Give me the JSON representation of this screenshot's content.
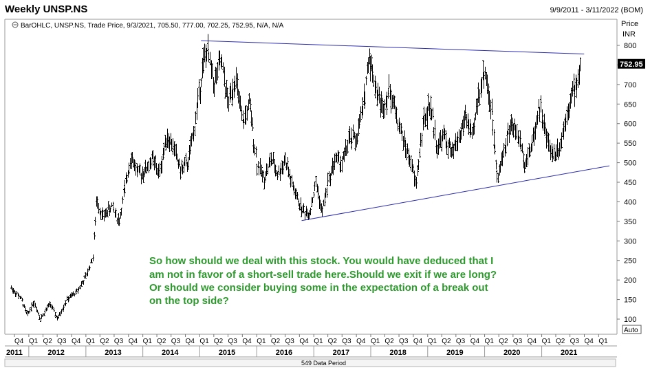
{
  "header": {
    "title": "Weekly UNSP.NS",
    "date_range": "9/9/2011 - 3/11/2022 (BOM)"
  },
  "chart_data": {
    "type": "bar",
    "ohlc_label": "BarOHLC, UNSP.NS, Trade Price, 9/3/2021, 705.50, 777.00, 702.25, 752.95, N/A, N/A",
    "y_axis": {
      "unit_line1": "Price",
      "unit_line2": "INR",
      "ticks": [
        100,
        150,
        200,
        250,
        300,
        350,
        400,
        450,
        500,
        550,
        600,
        650,
        700,
        750,
        800
      ],
      "ylim": [
        80,
        830
      ]
    },
    "last_price_label": "752.95",
    "last_price": 752.95,
    "quarter_labels": [
      "Q4",
      "Q1",
      "Q2",
      "Q3",
      "Q4",
      "Q1",
      "Q2",
      "Q3",
      "Q4",
      "Q1",
      "Q2",
      "Q3",
      "Q4",
      "Q1",
      "Q2",
      "Q3",
      "Q4",
      "Q1",
      "Q2",
      "Q3",
      "Q4",
      "Q1",
      "Q2",
      "Q3",
      "Q4",
      "Q1",
      "Q2",
      "Q3",
      "Q4",
      "Q1",
      "Q2",
      "Q3",
      "Q4",
      "Q1",
      "Q2",
      "Q3",
      "Q4",
      "Q1",
      "Q2",
      "Q3",
      "Q4",
      "Q1"
    ],
    "year_labels": [
      "2011",
      "2012",
      "2013",
      "2014",
      "2015",
      "2016",
      "2017",
      "2018",
      "2019",
      "2020",
      "2021"
    ],
    "footer_label": "549 Data Period",
    "auto_label": "Auto",
    "price_path": [
      [
        "2011-09-09",
        180
      ],
      [
        "2011-11-15",
        150
      ],
      [
        "2011-12-20",
        110
      ],
      [
        "2012-02-01",
        145
      ],
      [
        "2012-03-15",
        100
      ],
      [
        "2012-05-15",
        140
      ],
      [
        "2012-07-01",
        100
      ],
      [
        "2012-09-01",
        150
      ],
      [
        "2012-11-01",
        170
      ],
      [
        "2013-01-01",
        210
      ],
      [
        "2013-02-15",
        260
      ],
      [
        "2013-03-10",
        410
      ],
      [
        "2013-04-15",
        360
      ],
      [
        "2013-06-15",
        390
      ],
      [
        "2013-08-01",
        350
      ],
      [
        "2013-10-15",
        520
      ],
      [
        "2013-12-01",
        470
      ],
      [
        "2014-01-15",
        480
      ],
      [
        "2014-03-01",
        510
      ],
      [
        "2014-04-15",
        470
      ],
      [
        "2014-06-01",
        570
      ],
      [
        "2014-07-15",
        540
      ],
      [
        "2014-09-01",
        480
      ],
      [
        "2014-10-15",
        500
      ],
      [
        "2014-12-01",
        600
      ],
      [
        "2015-01-15",
        740
      ],
      [
        "2015-02-15",
        790
      ],
      [
        "2015-04-01",
        700
      ],
      [
        "2015-05-15",
        760
      ],
      [
        "2015-07-01",
        650
      ],
      [
        "2015-08-15",
        720
      ],
      [
        "2015-10-01",
        600
      ],
      [
        "2015-11-15",
        650
      ],
      [
        "2015-12-31",
        500
      ],
      [
        "2016-02-15",
        460
      ],
      [
        "2016-04-01",
        510
      ],
      [
        "2016-05-15",
        470
      ],
      [
        "2016-07-01",
        510
      ],
      [
        "2016-08-15",
        440
      ],
      [
        "2016-10-15",
        380
      ],
      [
        "2016-12-01",
        370
      ],
      [
        "2017-01-15",
        450
      ],
      [
        "2017-02-20",
        370
      ],
      [
        "2017-04-01",
        450
      ],
      [
        "2017-05-15",
        510
      ],
      [
        "2017-07-01",
        500
      ],
      [
        "2017-08-15",
        560
      ],
      [
        "2017-10-01",
        560
      ],
      [
        "2017-11-15",
        650
      ],
      [
        "2017-12-20",
        780
      ],
      [
        "2018-02-01",
        690
      ],
      [
        "2018-03-15",
        640
      ],
      [
        "2018-05-01",
        690
      ],
      [
        "2018-06-15",
        620
      ],
      [
        "2018-08-01",
        550
      ],
      [
        "2018-09-15",
        500
      ],
      [
        "2018-10-15",
        440
      ],
      [
        "2018-12-01",
        600
      ],
      [
        "2019-01-15",
        650
      ],
      [
        "2019-03-01",
        540
      ],
      [
        "2019-04-15",
        570
      ],
      [
        "2019-06-01",
        520
      ],
      [
        "2019-07-15",
        560
      ],
      [
        "2019-09-01",
        620
      ],
      [
        "2019-10-15",
        560
      ],
      [
        "2019-11-15",
        660
      ],
      [
        "2020-01-01",
        740
      ],
      [
        "2020-02-15",
        620
      ],
      [
        "2020-03-25",
        460
      ],
      [
        "2020-05-01",
        530
      ],
      [
        "2020-06-15",
        600
      ],
      [
        "2020-08-01",
        570
      ],
      [
        "2020-09-15",
        500
      ],
      [
        "2020-11-01",
        550
      ],
      [
        "2020-12-15",
        650
      ],
      [
        "2021-02-01",
        560
      ],
      [
        "2021-03-15",
        520
      ],
      [
        "2021-05-01",
        550
      ],
      [
        "2021-06-15",
        640
      ],
      [
        "2021-07-15",
        680
      ],
      [
        "2021-08-15",
        700
      ],
      [
        "2021-09-03",
        752.95
      ]
    ],
    "trendlines": [
      {
        "from": [
          "2015-01-09",
          812
        ],
        "to": [
          "2021-09-30",
          778
        ]
      },
      {
        "from": [
          "2016-10-15",
          352
        ],
        "to": [
          "2022-03-11",
          492
        ]
      }
    ]
  },
  "annotation": {
    "lines": [
      "So how should we deal with this stock. You would have deduced that I",
      "am not in favor of a short-sell trade here.Should we exit if we are long?",
      "Or should we consider buying some in the expectation of a break out",
      "on the top side?"
    ],
    "color": "#2e9a2e"
  },
  "colors": {
    "bars": "#000000",
    "trendline": "#2b2bb0",
    "badge": "#000000",
    "note": "#2e9a2e"
  }
}
